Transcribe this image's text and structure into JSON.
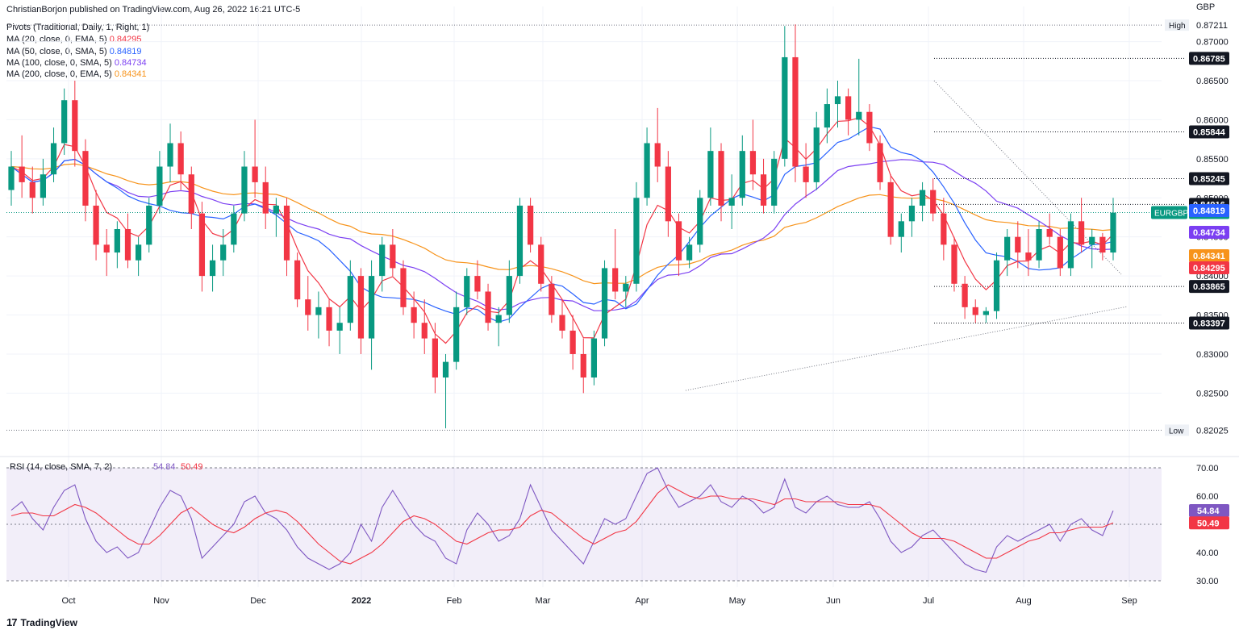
{
  "header": {
    "publisher": "ChristianBorjon published on TradingView.com, Aug 26, 2022 16:21 UTC-5",
    "indicators": [
      {
        "label": "Pivots (Traditional, Daily, 1, Right, 1)",
        "value": "",
        "color": "#131722"
      },
      {
        "label": "MA (20, close, 0, EMA, 5)",
        "value": "0.84295",
        "color": "#f23645"
      },
      {
        "label": "MA (50, close, 0, SMA, 5)",
        "value": "0.84819",
        "color": "#2962ff"
      },
      {
        "label": "MA (100, close, 0, SMA, 5)",
        "value": "0.84734",
        "color": "#7b3ff2"
      },
      {
        "label": "MA (200, close, 0, EMA, 5)",
        "value": "0.84341",
        "color": "#f7931a"
      }
    ]
  },
  "footer": {
    "brand": "TradingView",
    "logo": "tradingview-logo-icon"
  },
  "chart_data": {
    "type": "candlestick",
    "symbol": "EURGBP",
    "currency_label": "GBP",
    "price_axis": {
      "ylim": [
        0.8175,
        0.8745
      ],
      "ticks": [
        "0.87000",
        "0.86500",
        "0.86000",
        "0.85500",
        "0.85000",
        "0.84500",
        "0.84000",
        "0.83500",
        "0.83000",
        "0.82500"
      ]
    },
    "time_axis": {
      "labels": [
        "Oct",
        "Nov",
        "Dec",
        "2022",
        "Feb",
        "Mar",
        "Apr",
        "May",
        "Jun",
        "Jul",
        "Aug",
        "Sep"
      ]
    },
    "high": {
      "label": "High",
      "value": "0.87211"
    },
    "low": {
      "label": "Low",
      "value": "0.82025"
    },
    "last_price": {
      "label": "EURGBP",
      "value": "0.84812",
      "color": "#089981"
    },
    "pivot_levels": [
      "0.86785",
      "0.85844",
      "0.85245",
      "0.84916",
      "0.83865",
      "0.83397"
    ],
    "ma_tags": [
      {
        "value": "0.84819",
        "color": "#2962ff"
      },
      {
        "value": "0.84734",
        "color": "#7b3ff2"
      },
      {
        "value": "0.84341",
        "color": "#f7931a"
      },
      {
        "value": "0.84295",
        "color": "#f23645"
      }
    ],
    "candles_ohlc": [
      [
        0.851,
        0.856,
        0.849,
        0.854
      ],
      [
        0.854,
        0.858,
        0.85,
        0.852
      ],
      [
        0.852,
        0.854,
        0.848,
        0.85
      ],
      [
        0.85,
        0.855,
        0.849,
        0.853
      ],
      [
        0.853,
        0.859,
        0.852,
        0.857
      ],
      [
        0.857,
        0.864,
        0.8555,
        0.8625
      ],
      [
        0.8625,
        0.865,
        0.854,
        0.856
      ],
      [
        0.856,
        0.8575,
        0.847,
        0.849
      ],
      [
        0.849,
        0.851,
        0.842,
        0.844
      ],
      [
        0.844,
        0.846,
        0.84,
        0.843
      ],
      [
        0.843,
        0.847,
        0.841,
        0.846
      ],
      [
        0.846,
        0.848,
        0.841,
        0.842
      ],
      [
        0.842,
        0.845,
        0.84,
        0.844
      ],
      [
        0.844,
        0.85,
        0.843,
        0.849
      ],
      [
        0.849,
        0.856,
        0.848,
        0.854
      ],
      [
        0.854,
        0.8595,
        0.852,
        0.857
      ],
      [
        0.857,
        0.8585,
        0.851,
        0.853
      ],
      [
        0.853,
        0.854,
        0.846,
        0.848
      ],
      [
        0.848,
        0.8495,
        0.838,
        0.84
      ],
      [
        0.84,
        0.844,
        0.838,
        0.842
      ],
      [
        0.842,
        0.846,
        0.84,
        0.844
      ],
      [
        0.844,
        0.849,
        0.843,
        0.848
      ],
      [
        0.848,
        0.856,
        0.847,
        0.854
      ],
      [
        0.854,
        0.86,
        0.85,
        0.852
      ],
      [
        0.852,
        0.854,
        0.846,
        0.848
      ],
      [
        0.848,
        0.85,
        0.845,
        0.849
      ],
      [
        0.849,
        0.85,
        0.84,
        0.842
      ],
      [
        0.842,
        0.843,
        0.836,
        0.837
      ],
      [
        0.837,
        0.84,
        0.833,
        0.835
      ],
      [
        0.835,
        0.838,
        0.832,
        0.836
      ],
      [
        0.836,
        0.837,
        0.831,
        0.833
      ],
      [
        0.833,
        0.836,
        0.83,
        0.834
      ],
      [
        0.834,
        0.842,
        0.833,
        0.84
      ],
      [
        0.84,
        0.841,
        0.83,
        0.832
      ],
      [
        0.832,
        0.842,
        0.828,
        0.84
      ],
      [
        0.84,
        0.845,
        0.838,
        0.844
      ],
      [
        0.844,
        0.846,
        0.84,
        0.841
      ],
      [
        0.841,
        0.842,
        0.835,
        0.836
      ],
      [
        0.836,
        0.838,
        0.832,
        0.834
      ],
      [
        0.834,
        0.837,
        0.83,
        0.832
      ],
      [
        0.832,
        0.834,
        0.825,
        0.827
      ],
      [
        0.827,
        0.83,
        0.8205,
        0.829
      ],
      [
        0.829,
        0.838,
        0.828,
        0.836
      ],
      [
        0.836,
        0.841,
        0.835,
        0.84
      ],
      [
        0.84,
        0.842,
        0.837,
        0.838
      ],
      [
        0.838,
        0.839,
        0.833,
        0.834
      ],
      [
        0.834,
        0.836,
        0.831,
        0.835
      ],
      [
        0.835,
        0.842,
        0.834,
        0.84
      ],
      [
        0.84,
        0.85,
        0.839,
        0.849
      ],
      [
        0.849,
        0.85,
        0.843,
        0.844
      ],
      [
        0.844,
        0.845,
        0.838,
        0.839
      ],
      [
        0.839,
        0.84,
        0.834,
        0.835
      ],
      [
        0.835,
        0.837,
        0.832,
        0.833
      ],
      [
        0.833,
        0.835,
        0.828,
        0.83
      ],
      [
        0.83,
        0.832,
        0.825,
        0.827
      ],
      [
        0.827,
        0.833,
        0.826,
        0.832
      ],
      [
        0.832,
        0.842,
        0.831,
        0.841
      ],
      [
        0.841,
        0.846,
        0.837,
        0.838
      ],
      [
        0.838,
        0.84,
        0.836,
        0.839
      ],
      [
        0.839,
        0.852,
        0.838,
        0.85
      ],
      [
        0.85,
        0.859,
        0.849,
        0.857
      ],
      [
        0.857,
        0.8615,
        0.852,
        0.854
      ],
      [
        0.854,
        0.856,
        0.845,
        0.847
      ],
      [
        0.847,
        0.848,
        0.84,
        0.842
      ],
      [
        0.842,
        0.845,
        0.841,
        0.844
      ],
      [
        0.844,
        0.851,
        0.843,
        0.85
      ],
      [
        0.85,
        0.859,
        0.849,
        0.856
      ],
      [
        0.856,
        0.857,
        0.847,
        0.849
      ],
      [
        0.849,
        0.853,
        0.846,
        0.85
      ],
      [
        0.85,
        0.858,
        0.849,
        0.856
      ],
      [
        0.856,
        0.86,
        0.851,
        0.853
      ],
      [
        0.853,
        0.855,
        0.848,
        0.849
      ],
      [
        0.849,
        0.856,
        0.848,
        0.855
      ],
      [
        0.855,
        0.872,
        0.854,
        0.868
      ],
      [
        0.868,
        0.8722,
        0.852,
        0.854
      ],
      [
        0.854,
        0.857,
        0.85,
        0.852
      ],
      [
        0.852,
        0.861,
        0.851,
        0.859
      ],
      [
        0.859,
        0.864,
        0.857,
        0.862
      ],
      [
        0.862,
        0.865,
        0.859,
        0.863
      ],
      [
        0.863,
        0.864,
        0.858,
        0.86
      ],
      [
        0.86,
        0.8678,
        0.858,
        0.861
      ],
      [
        0.861,
        0.862,
        0.856,
        0.857
      ],
      [
        0.857,
        0.858,
        0.851,
        0.852
      ],
      [
        0.852,
        0.853,
        0.844,
        0.845
      ],
      [
        0.845,
        0.848,
        0.843,
        0.847
      ],
      [
        0.847,
        0.85,
        0.845,
        0.849
      ],
      [
        0.849,
        0.852,
        0.847,
        0.851
      ],
      [
        0.851,
        0.8525,
        0.847,
        0.848
      ],
      [
        0.848,
        0.85,
        0.842,
        0.844
      ],
      [
        0.844,
        0.845,
        0.838,
        0.839
      ],
      [
        0.839,
        0.84,
        0.8345,
        0.836
      ],
      [
        0.836,
        0.837,
        0.834,
        0.835
      ],
      [
        0.835,
        0.836,
        0.834,
        0.8355
      ],
      [
        0.8355,
        0.843,
        0.8345,
        0.842
      ],
      [
        0.842,
        0.846,
        0.84,
        0.845
      ],
      [
        0.845,
        0.847,
        0.841,
        0.843
      ],
      [
        0.843,
        0.846,
        0.84,
        0.842
      ],
      [
        0.842,
        0.847,
        0.841,
        0.846
      ],
      [
        0.846,
        0.848,
        0.844,
        0.845
      ],
      [
        0.845,
        0.846,
        0.84,
        0.841
      ],
      [
        0.841,
        0.848,
        0.84,
        0.847
      ],
      [
        0.847,
        0.85,
        0.843,
        0.844
      ],
      [
        0.844,
        0.846,
        0.841,
        0.845
      ],
      [
        0.845,
        0.8455,
        0.842,
        0.843
      ],
      [
        0.843,
        0.85,
        0.842,
        0.8481
      ]
    ],
    "rsi": {
      "label": "RSI (14, close, SMA, 7, 2)",
      "value": "54.84",
      "ma_value": "50.49",
      "ylim": [
        30,
        70
      ],
      "ticks": [
        "70.00",
        "60.00",
        "40.00",
        "30.00"
      ],
      "series": [
        55,
        58,
        52,
        48,
        56,
        62,
        64,
        52,
        44,
        40,
        42,
        38,
        40,
        48,
        56,
        62,
        60,
        52,
        38,
        42,
        46,
        50,
        58,
        60,
        54,
        52,
        48,
        42,
        38,
        36,
        34,
        36,
        40,
        50,
        44,
        56,
        62,
        56,
        50,
        46,
        44,
        38,
        36,
        48,
        54,
        50,
        44,
        46,
        52,
        64,
        56,
        48,
        44,
        40,
        36,
        44,
        52,
        50,
        52,
        60,
        68,
        70,
        62,
        56,
        58,
        60,
        64,
        58,
        56,
        60,
        58,
        54,
        56,
        66,
        56,
        54,
        58,
        60,
        57,
        56,
        56,
        58,
        52,
        44,
        40,
        42,
        46,
        48,
        44,
        40,
        36,
        34,
        33,
        42,
        46,
        44,
        46,
        48,
        50,
        44,
        50,
        52,
        48,
        46,
        54.84
      ],
      "signal": [
        53,
        54,
        54,
        53,
        53,
        55,
        57,
        56,
        54,
        51,
        48,
        45,
        43,
        43,
        46,
        50,
        54,
        56,
        53,
        50,
        48,
        47,
        49,
        52,
        54,
        55,
        54,
        51,
        47,
        43,
        40,
        37,
        36,
        38,
        40,
        43,
        47,
        51,
        53,
        52,
        50,
        47,
        44,
        43,
        45,
        47,
        48,
        48,
        49,
        53,
        55,
        54,
        51,
        48,
        45,
        43,
        45,
        47,
        48,
        51,
        56,
        61,
        64,
        62,
        60,
        59,
        60,
        60,
        59,
        59,
        59,
        58,
        57,
        59,
        59,
        58,
        58,
        58,
        58,
        57,
        57,
        57,
        56,
        53,
        50,
        47,
        45,
        45,
        45,
        44,
        42,
        40,
        38,
        38,
        40,
        42,
        44,
        45,
        47,
        47,
        48,
        49,
        49,
        49,
        50.49
      ]
    }
  }
}
